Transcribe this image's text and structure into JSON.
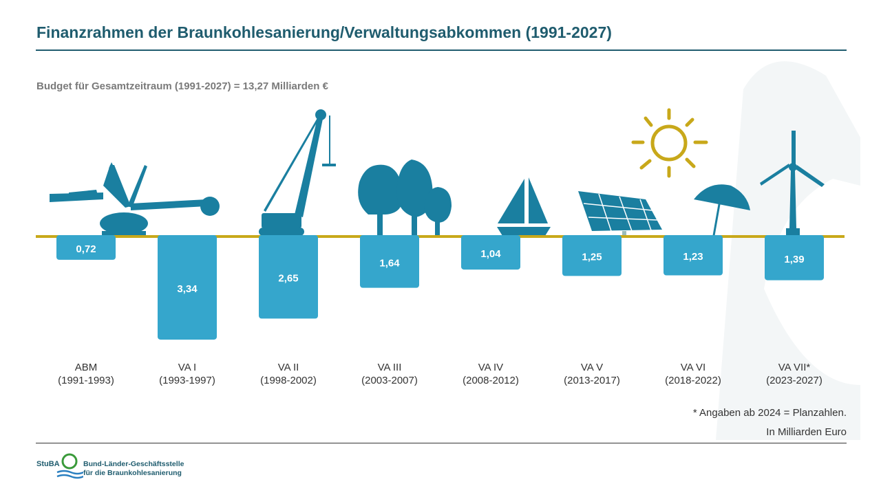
{
  "title": "Finanzrahmen der Braunkohlesanierung/Verwaltungsabkommen (1991-2027)",
  "subtitle": "Budget für Gesamtzeitraum (1991-2027) = 13,27 Milliarden  €",
  "footnote": "* Angaben ab 2024 = Planzahlen.",
  "unit_note": "In Milliarden Euro",
  "logo": {
    "abbr": "StuBA",
    "line1": "Bund-Länder-Geschäftsstelle",
    "line2": "für die Braunkohlesanierung"
  },
  "colors": {
    "bar": "#35a6cc",
    "baseline": "#c8a81a",
    "icon": "#1a7fa0",
    "sun": "#c8a81a",
    "title": "#1f5c6e"
  },
  "chart_data": {
    "type": "bar",
    "orientation": "downward",
    "categories": [
      [
        "ABM",
        "(1991-1993)"
      ],
      [
        "VA I",
        "(1993-1997)"
      ],
      [
        "VA II",
        "(1998-2002)"
      ],
      [
        "VA III",
        "(2003-2007)"
      ],
      [
        "VA IV",
        "(2008-2012)"
      ],
      [
        "VA V",
        "(2013-2017)"
      ],
      [
        "VA VI",
        "(2018-2022)"
      ],
      [
        "VA VII*",
        "(2023-2027)"
      ]
    ],
    "values": [
      0.72,
      3.34,
      2.65,
      1.64,
      1.04,
      1.25,
      1.23,
      1.39
    ],
    "value_labels": [
      "0,72",
      "3,34",
      "2,65",
      "1,64",
      "1,04",
      "1,25",
      "1,23",
      "1,39"
    ],
    "icons": [
      "excavator-icon",
      "crane-icon",
      "trees-icon",
      "sailboat-icon",
      "solar-panel-icon",
      "sun-umbrella-icon",
      "wind-turbine-icon"
    ],
    "ylim": [
      0,
      3.4
    ],
    "grid": false,
    "legend": "none"
  }
}
